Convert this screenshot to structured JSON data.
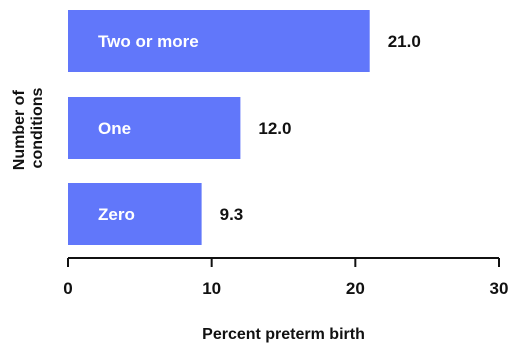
{
  "chart_data": {
    "type": "bar",
    "orientation": "horizontal",
    "categories": [
      "Two or more",
      "One",
      "Zero"
    ],
    "values": [
      21.0,
      12.0,
      9.3
    ],
    "value_labels": [
      "21.0",
      "12.0",
      "9.3"
    ],
    "xlabel": "Percent preterm birth",
    "ylabel_lines": [
      "Number of",
      "conditions"
    ],
    "xlim": [
      0,
      30
    ],
    "xticks": [
      0,
      10,
      20,
      30
    ],
    "xtick_labels": [
      "0",
      "10",
      "20",
      "30"
    ],
    "grid": false,
    "bar_color": "#6177fa",
    "axis_color": "#111111"
  }
}
